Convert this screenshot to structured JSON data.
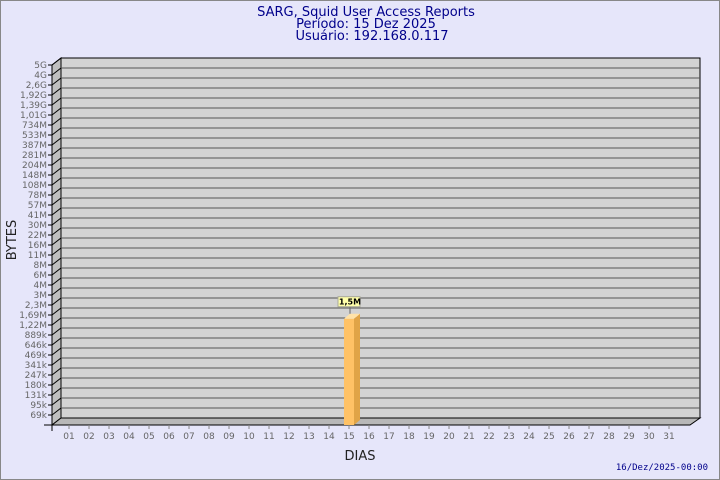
{
  "chart_data": {
    "type": "bar",
    "title": "SARG, Squid User Access Reports",
    "subtitle_period": "Período: 15 Dez 2025",
    "subtitle_user": "Usuário: 192.168.0.117",
    "xlabel": "DIAS",
    "ylabel": "BYTES",
    "footer": "16/Dez/2025-00:00",
    "y_tick_labels": [
      "5G",
      "4G",
      "2,6G",
      "1,92G",
      "1,39G",
      "1,01G",
      "734M",
      "533M",
      "387M",
      "281M",
      "204M",
      "148M",
      "108M",
      "78M",
      "57M",
      "41M",
      "30M",
      "22M",
      "16M",
      "11M",
      "8M",
      "6M",
      "4M",
      "3M",
      "2,3M",
      "1,69M",
      "1,22M",
      "889k",
      "646k",
      "469k",
      "341k",
      "247k",
      "180k",
      "131k",
      "95k",
      "69k"
    ],
    "categories": [
      "01",
      "02",
      "03",
      "04",
      "05",
      "06",
      "07",
      "08",
      "09",
      "10",
      "11",
      "12",
      "13",
      "14",
      "15",
      "16",
      "17",
      "18",
      "19",
      "20",
      "21",
      "22",
      "23",
      "24",
      "25",
      "26",
      "27",
      "28",
      "29",
      "30",
      "31"
    ],
    "values": [
      null,
      null,
      null,
      null,
      null,
      null,
      null,
      null,
      null,
      null,
      null,
      null,
      null,
      null,
      1500000,
      null,
      null,
      null,
      null,
      null,
      null,
      null,
      null,
      null,
      null,
      null,
      null,
      null,
      null,
      null,
      null
    ],
    "data_labels": {
      "15": "1,5M"
    },
    "scale": "log",
    "grid": true,
    "colors": {
      "background": "#e6e6fa",
      "wall": "#d3d3d3",
      "bar": "#ffc266",
      "bar_side": "#e0a447",
      "title": "#00008b"
    }
  }
}
